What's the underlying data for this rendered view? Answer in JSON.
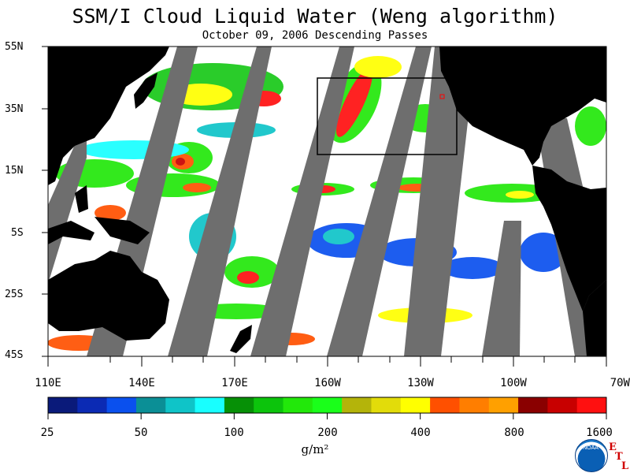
{
  "title": "SSM/I Cloud Liquid Water (Weng algorithm)",
  "subtitle": "October 09, 2006  Descending Passes",
  "lat_labels": [
    "55N",
    "35N",
    "15N",
    "5S",
    "25S",
    "45S"
  ],
  "lon_labels": [
    "110E",
    "140E",
    "170E",
    "160W",
    "130W",
    "100W",
    "70W"
  ],
  "colorbar": {
    "tick_labels": [
      "25",
      "50",
      "100",
      "200",
      "400",
      "800",
      "1600"
    ],
    "units": "g/m²",
    "colors": [
      "#0a1a7a",
      "#0b2ab4",
      "#0a50ee",
      "#0b8f96",
      "#0fc4c8",
      "#18ffff",
      "#069006",
      "#0cc40c",
      "#22e80a",
      "#1aff1a",
      "#b4b40a",
      "#e2dc0a",
      "#ffff00",
      "#ff5000",
      "#ff7e00",
      "#ffa000",
      "#8a0000",
      "#c80000",
      "#ff1010"
    ]
  },
  "logo": {
    "name": "NOAA",
    "etl": [
      "E",
      "T",
      "L"
    ]
  },
  "colors": {
    "no_data": "#6e6e6e",
    "land": "#000000",
    "ocean_clear": "#ffffff",
    "box": "#000000",
    "marker": "#ff0000"
  }
}
